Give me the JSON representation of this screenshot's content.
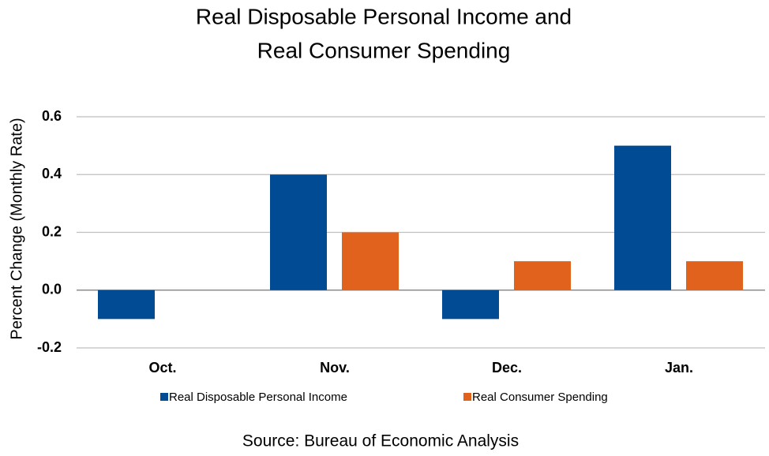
{
  "chart_data": {
    "type": "bar",
    "title": [
      "Real Disposable Personal Income and",
      "Real Consumer Spending"
    ],
    "y_label": "Percent Change (Monthly Rate)",
    "source": "Source:  Bureau of Economic Analysis",
    "categories": [
      "Oct.",
      "Nov.",
      "Dec.",
      "Jan."
    ],
    "series": [
      {
        "name": "Real Disposable Personal Income",
        "color": "#004b93",
        "values": [
          -0.1,
          0.4,
          -0.1,
          0.5
        ]
      },
      {
        "name": "Real Consumer Spending",
        "color": "#e0621c",
        "values": [
          0,
          0.2,
          0.1,
          0.1
        ]
      }
    ],
    "ylim": [
      -0.2,
      0.6
    ],
    "yticks": [
      -0.2,
      {
        "value": 0,
        "label": "0.0"
      },
      0.2,
      0.4,
      0.6
    ],
    "grid": true,
    "legend": "bottom"
  }
}
